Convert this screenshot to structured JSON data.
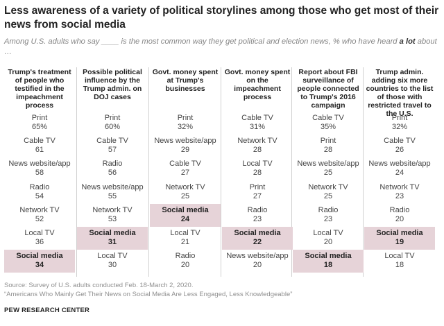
{
  "title": "Less awareness of a variety of political storylines among those who get most of their news from social media",
  "subtitle_pre": "Among U.S. adults who say ____ is the most common way they get political and election news, % who have heard ",
  "subtitle_bold": "a lot",
  "subtitle_post": " about …",
  "source": "Source: Survey of U.S. adults conducted Feb. 18-March 2, 2020.",
  "report": "“Americans Who Mainly Get Their News on Social Media Are Less Engaged, Less Knowledgeable”",
  "brand": "PEW RESEARCH CENTER",
  "highlight_color": "#e6d3d8",
  "chart_data": {
    "type": "table",
    "highlight_source": "Social media",
    "columns": [
      {
        "header": "Trump's treatment of people who testified in the impeachment process",
        "rows": [
          {
            "source": "Print",
            "value": "65%"
          },
          {
            "source": "Cable TV",
            "value": "61"
          },
          {
            "source": "News website/app",
            "value": "58"
          },
          {
            "source": "Radio",
            "value": "54"
          },
          {
            "source": "Network TV",
            "value": "52"
          },
          {
            "source": "Local TV",
            "value": "36"
          },
          {
            "source": "Social media",
            "value": "34"
          }
        ]
      },
      {
        "header": "Possible political influence by the Trump admin. on DOJ cases",
        "rows": [
          {
            "source": "Print",
            "value": "60%"
          },
          {
            "source": "Cable TV",
            "value": "57"
          },
          {
            "source": "Radio",
            "value": "56"
          },
          {
            "source": "News website/app",
            "value": "55"
          },
          {
            "source": "Network TV",
            "value": "53"
          },
          {
            "source": "Social media",
            "value": "31"
          },
          {
            "source": "Local TV",
            "value": "30"
          }
        ]
      },
      {
        "header": "Govt. money spent at Trump's businesses",
        "rows": [
          {
            "source": "Print",
            "value": "32%"
          },
          {
            "source": "News website/app",
            "value": "29"
          },
          {
            "source": "Cable TV",
            "value": "27"
          },
          {
            "source": "Network TV",
            "value": "25"
          },
          {
            "source": "Social media",
            "value": "24"
          },
          {
            "source": "Local TV",
            "value": "21"
          },
          {
            "source": "Radio",
            "value": "20"
          }
        ]
      },
      {
        "header": "Govt. money spent on the impeachment process",
        "rows": [
          {
            "source": "Cable TV",
            "value": "31%"
          },
          {
            "source": "Network TV",
            "value": "28"
          },
          {
            "source": "Local TV",
            "value": "28"
          },
          {
            "source": "Print",
            "value": "27"
          },
          {
            "source": "Radio",
            "value": "23"
          },
          {
            "source": "Social media",
            "value": "22"
          },
          {
            "source": "News website/app",
            "value": "20"
          }
        ]
      },
      {
        "header": "Report about FBI surveillance of people connected to Trump's 2016 campaign",
        "rows": [
          {
            "source": "Cable TV",
            "value": "35%"
          },
          {
            "source": "Print",
            "value": "28"
          },
          {
            "source": "News website/app",
            "value": "25"
          },
          {
            "source": "Network TV",
            "value": "25"
          },
          {
            "source": "Radio",
            "value": "23"
          },
          {
            "source": "Local TV",
            "value": "20"
          },
          {
            "source": "Social media",
            "value": "18"
          }
        ]
      },
      {
        "header": "Trump admin. adding six more countries to the list of those with restricted travel to the U.S.",
        "rows": [
          {
            "source": "Print",
            "value": "32%"
          },
          {
            "source": "Cable TV",
            "value": "26"
          },
          {
            "source": "News website/app",
            "value": "24"
          },
          {
            "source": "Network TV",
            "value": "23"
          },
          {
            "source": "Radio",
            "value": "20"
          },
          {
            "source": "Social media",
            "value": "19"
          },
          {
            "source": "Local TV",
            "value": "18"
          }
        ]
      }
    ]
  }
}
